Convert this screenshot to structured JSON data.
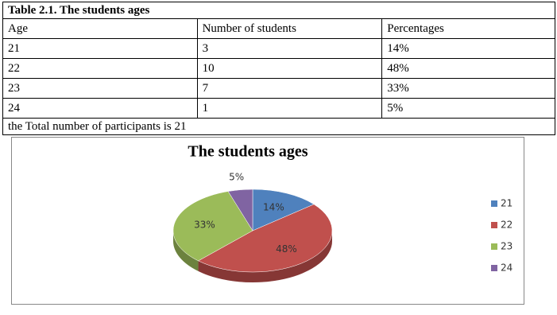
{
  "table": {
    "caption": "Table 2.1.  The students ages",
    "header": [
      "Age",
      "Number of students",
      "Percentages"
    ],
    "rows": [
      [
        "21",
        "3",
        "14%"
      ],
      [
        "22",
        "10",
        "48%"
      ],
      [
        "23",
        "7",
        "33%"
      ],
      [
        "24",
        "1",
        "5%"
      ]
    ],
    "footer": "the Total number of participants is 21"
  },
  "chart_data": {
    "type": "pie",
    "title": "The students ages",
    "categories": [
      "21",
      "22",
      "23",
      "24"
    ],
    "values": [
      14,
      48,
      33,
      5
    ],
    "value_labels": [
      "14%",
      "48%",
      "33%",
      "5%"
    ],
    "colors": [
      "#4f81bd",
      "#c0504d",
      "#9bbb59",
      "#8064a2"
    ],
    "legend": "right"
  }
}
